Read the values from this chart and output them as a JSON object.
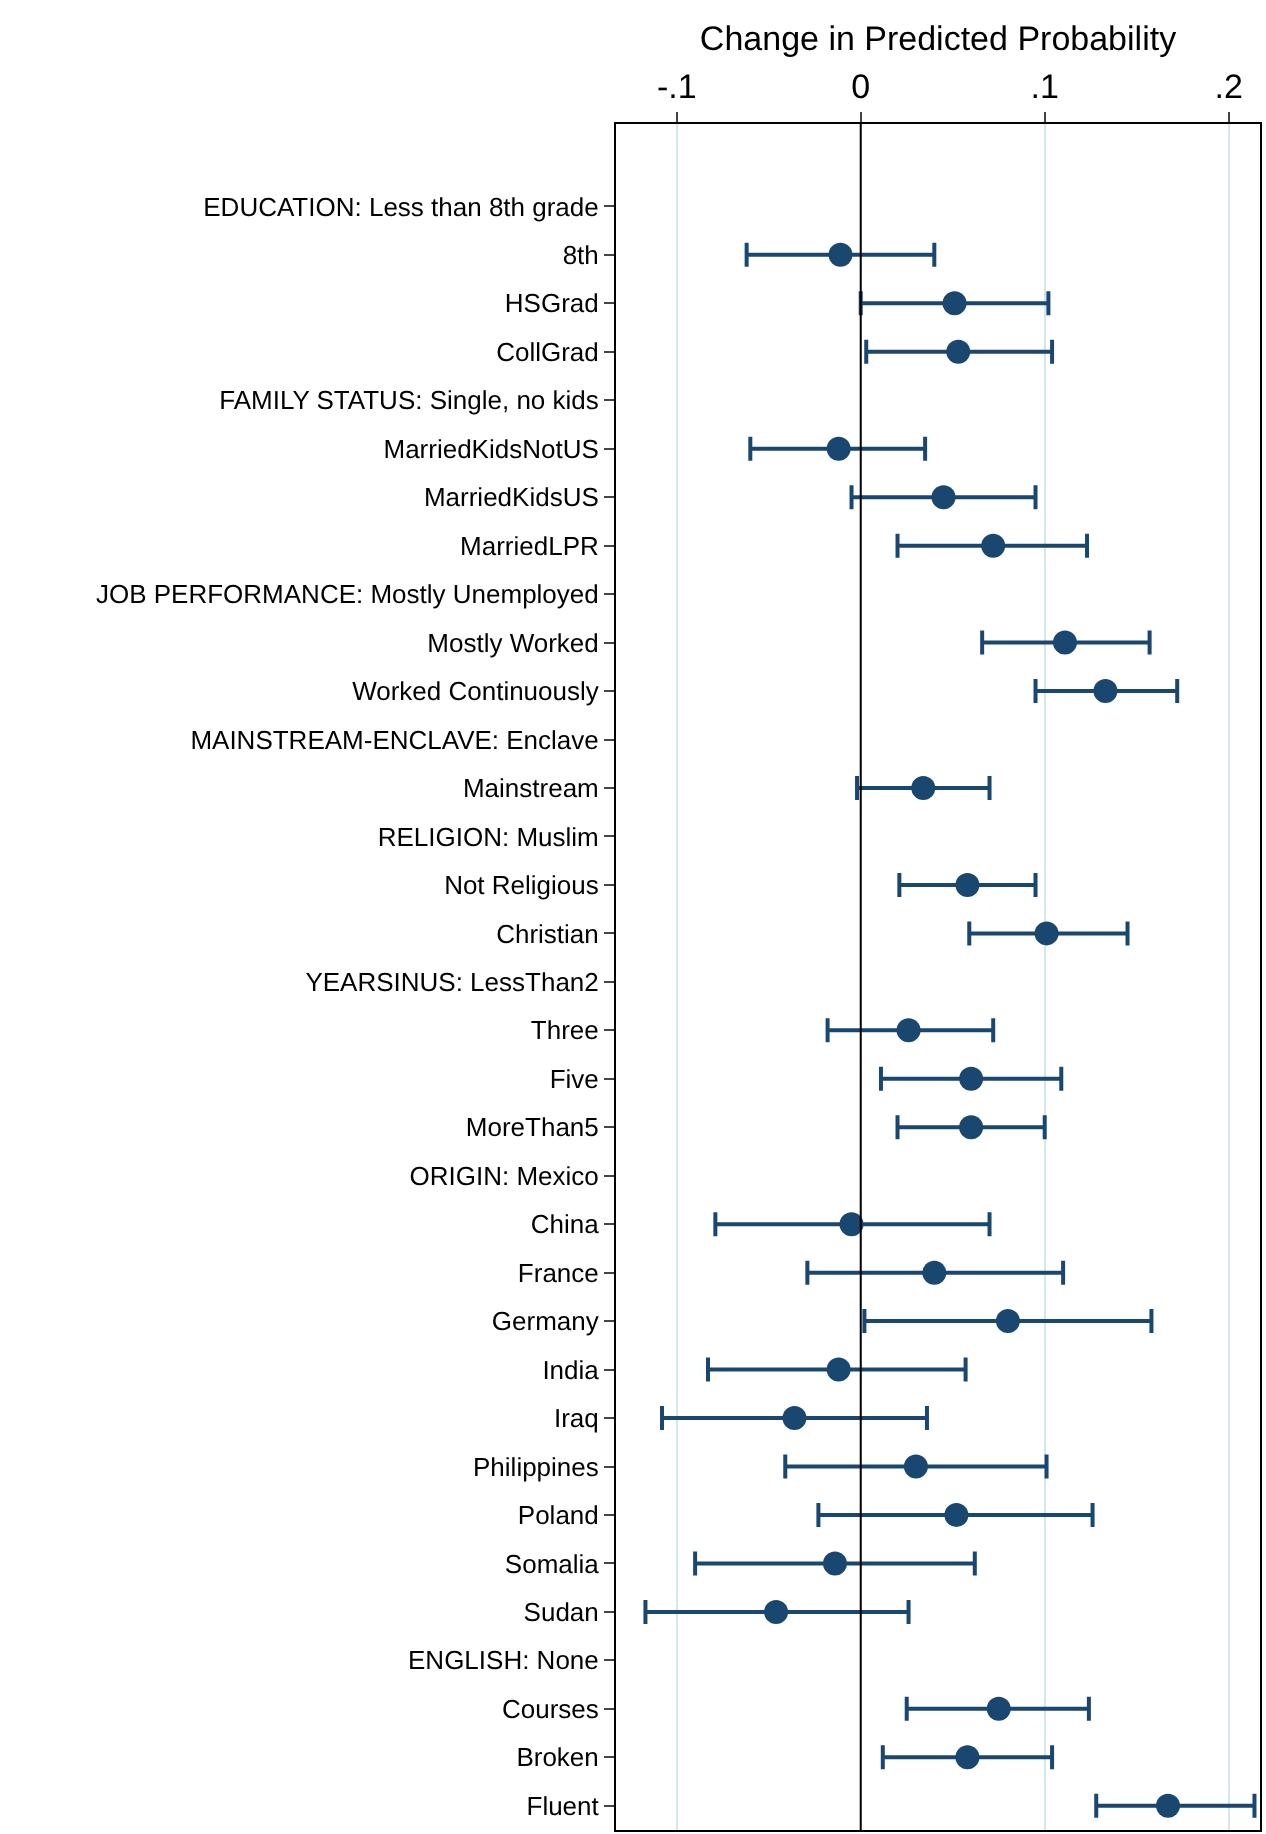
{
  "chart_data": {
    "type": "scatter",
    "xlabel": "Change in Predicted Probability",
    "categories": [
      "EDUCATION: Less than 8th grade",
      "8th",
      "HSGrad",
      "CollGrad",
      "FAMILY STATUS: Single, no kids",
      "MarriedKidsNotUS",
      "MarriedKidsUS",
      "MarriedLPR",
      "JOB PERFORMANCE: Mostly Unemployed",
      "Mostly Worked",
      "Worked Continuously",
      "MAINSTREAM-ENCLAVE: Enclave",
      "Mainstream",
      "RELIGION: Muslim",
      "Not Religious",
      "Christian",
      "YEARSINUS: LessThan2",
      "Three",
      "Five",
      "MoreThan5",
      "ORIGIN: Mexico",
      "China",
      "France",
      "Germany",
      "India",
      "Iraq",
      "Philippines",
      "Poland",
      "Somalia",
      "Sudan",
      "ENGLISH: None",
      "Courses",
      "Broken",
      "Fluent"
    ],
    "series": [
      {
        "color": "#1a476f",
        "values": [
          null,
          -0.011,
          0.051,
          0.053,
          null,
          -0.012,
          0.045,
          0.072,
          null,
          0.111,
          0.133,
          null,
          0.034,
          null,
          0.058,
          0.101,
          null,
          0.026,
          0.06,
          0.06,
          null,
          -0.005,
          0.04,
          0.08,
          -0.012,
          -0.036,
          0.03,
          0.052,
          -0.014,
          -0.046,
          null,
          0.075,
          0.058,
          0.167
        ],
        "errors": [
          null,
          [
            -0.062,
            0.04
          ],
          [
            0.0,
            0.102
          ],
          [
            0.003,
            0.104
          ],
          null,
          [
            -0.06,
            0.035
          ],
          [
            -0.005,
            0.095
          ],
          [
            0.02,
            0.123
          ],
          null,
          [
            0.066,
            0.157
          ],
          [
            0.095,
            0.172
          ],
          null,
          [
            -0.002,
            0.07
          ],
          null,
          [
            0.021,
            0.095
          ],
          [
            0.059,
            0.145
          ],
          null,
          [
            -0.018,
            0.072
          ],
          [
            0.011,
            0.109
          ],
          [
            0.02,
            0.1
          ],
          null,
          [
            -0.079,
            0.07
          ],
          [
            -0.029,
            0.11
          ],
          [
            0.002,
            0.158
          ],
          [
            -0.083,
            0.057
          ],
          [
            -0.108,
            0.036
          ],
          [
            -0.041,
            0.101
          ],
          [
            -0.023,
            0.126
          ],
          [
            -0.09,
            0.062
          ],
          [
            -0.117,
            0.026
          ],
          null,
          [
            0.025,
            0.124
          ],
          [
            0.012,
            0.104
          ],
          [
            0.128,
            0.214
          ]
        ]
      }
    ],
    "xlim": [
      -0.133,
      0.217
    ],
    "xticks": [
      {
        "value": -0.1,
        "label": "-.1"
      },
      {
        "value": 0,
        "label": "0"
      },
      {
        "value": 0.1,
        "label": ".1"
      },
      {
        "value": 0.2,
        "label": ".2"
      }
    ],
    "grid": "x",
    "marker": "circle",
    "orientation": "horizontal",
    "ref_lines": [
      {
        "axis": "x",
        "value": 0,
        "color": "#000000"
      }
    ]
  }
}
